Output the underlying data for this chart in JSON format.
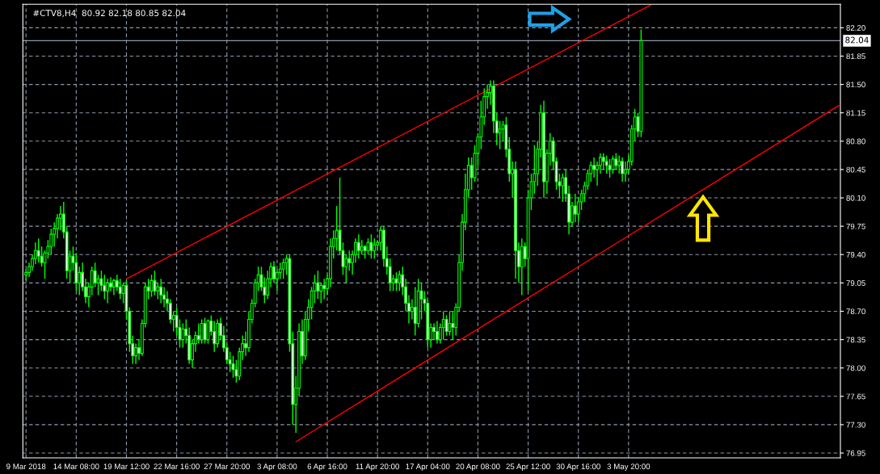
{
  "chart_data": {
    "type": "candlestick",
    "title": "#CTV8,H4  80.92 82.18 80.85 82.04",
    "series": [
      {
        "type": "candlestick",
        "color": "#00ff00",
        "ohlc": [
          [
            79.15,
            79.22,
            79.08,
            79.18
          ],
          [
            79.18,
            79.3,
            79.12,
            79.25
          ],
          [
            79.25,
            79.4,
            79.2,
            79.35
          ],
          [
            79.35,
            79.55,
            79.28,
            79.45
          ],
          [
            79.45,
            79.6,
            79.3,
            79.38
          ],
          [
            79.38,
            79.5,
            79.25,
            79.3
          ],
          [
            79.3,
            79.45,
            79.1,
            79.42
          ],
          [
            79.42,
            79.58,
            79.35,
            79.5
          ],
          [
            79.5,
            79.72,
            79.4,
            79.65
          ],
          [
            79.65,
            79.8,
            79.5,
            79.72
          ],
          [
            79.72,
            79.9,
            79.6,
            79.85
          ],
          [
            79.85,
            80.0,
            79.7,
            79.9
          ],
          [
            79.9,
            80.05,
            79.6,
            79.68
          ],
          [
            79.68,
            79.75,
            79.1,
            79.2
          ],
          [
            79.2,
            79.45,
            79.05,
            79.38
          ],
          [
            79.38,
            79.5,
            79.2,
            79.3
          ],
          [
            79.3,
            79.42,
            78.95,
            79.05
          ],
          [
            79.05,
            79.25,
            78.9,
            79.18
          ],
          [
            79.18,
            79.3,
            78.95,
            79.0
          ],
          [
            79.0,
            79.1,
            78.8,
            78.88
          ],
          [
            78.88,
            79.05,
            78.75,
            79.0
          ],
          [
            79.0,
            79.25,
            78.9,
            79.2
          ],
          [
            79.2,
            79.3,
            79.0,
            79.05
          ],
          [
            79.05,
            79.15,
            78.9,
            79.1
          ],
          [
            79.1,
            79.2,
            78.95,
            79.02
          ],
          [
            79.02,
            79.15,
            78.85,
            78.95
          ],
          [
            78.95,
            79.1,
            78.8,
            79.05
          ],
          [
            79.05,
            79.12,
            78.95,
            79.0
          ],
          [
            79.0,
            79.1,
            78.9,
            79.08
          ],
          [
            79.08,
            79.15,
            78.95,
            79.0
          ],
          [
            79.0,
            79.1,
            78.85,
            78.92
          ],
          [
            78.92,
            79.05,
            78.8,
            79.02
          ],
          [
            79.02,
            79.08,
            78.6,
            78.7
          ],
          [
            78.7,
            78.75,
            78.2,
            78.3
          ],
          [
            78.3,
            78.4,
            78.05,
            78.15
          ],
          [
            78.15,
            78.3,
            78.05,
            78.25
          ],
          [
            78.25,
            78.35,
            78.1,
            78.18
          ],
          [
            78.18,
            78.6,
            78.15,
            78.55
          ],
          [
            78.55,
            79.05,
            78.5,
            79.0
          ],
          [
            79.0,
            79.1,
            78.85,
            78.95
          ],
          [
            78.95,
            79.15,
            78.88,
            79.08
          ],
          [
            79.08,
            79.2,
            78.9,
            78.95
          ],
          [
            78.95,
            79.05,
            78.85,
            79.0
          ],
          [
            79.0,
            79.1,
            78.8,
            78.9
          ],
          [
            78.9,
            79.0,
            78.75,
            78.85
          ],
          [
            78.85,
            78.95,
            78.7,
            78.8
          ],
          [
            78.8,
            78.85,
            78.55,
            78.6
          ],
          [
            78.6,
            78.7,
            78.45,
            78.65
          ],
          [
            78.65,
            78.75,
            78.4,
            78.5
          ],
          [
            78.5,
            78.6,
            78.25,
            78.35
          ],
          [
            78.35,
            78.55,
            78.25,
            78.48
          ],
          [
            78.48,
            78.6,
            78.3,
            78.4
          ],
          [
            78.4,
            78.5,
            78.05,
            78.1
          ],
          [
            78.1,
            78.35,
            78.0,
            78.3
          ],
          [
            78.3,
            78.45,
            78.2,
            78.4
          ],
          [
            78.4,
            78.55,
            78.3,
            78.35
          ],
          [
            78.35,
            78.6,
            78.3,
            78.55
          ],
          [
            78.55,
            78.62,
            78.3,
            78.35
          ],
          [
            78.35,
            78.6,
            78.3,
            78.58
          ],
          [
            78.58,
            78.65,
            78.4,
            78.45
          ],
          [
            78.45,
            78.58,
            78.2,
            78.3
          ],
          [
            78.3,
            78.6,
            78.25,
            78.55
          ],
          [
            78.55,
            78.62,
            78.35,
            78.4
          ],
          [
            78.4,
            78.52,
            78.2,
            78.25
          ],
          [
            78.25,
            78.3,
            78.05,
            78.1
          ],
          [
            78.1,
            78.2,
            77.95,
            78.05
          ],
          [
            78.05,
            78.15,
            77.88,
            77.98
          ],
          [
            77.98,
            78.1,
            77.82,
            77.9
          ],
          [
            77.9,
            78.25,
            77.85,
            78.2
          ],
          [
            78.2,
            78.4,
            78.1,
            78.3
          ],
          [
            78.3,
            78.45,
            78.15,
            78.25
          ],
          [
            78.25,
            78.7,
            78.2,
            78.6
          ],
          [
            78.6,
            78.85,
            78.55,
            78.8
          ],
          [
            78.8,
            79.1,
            78.75,
            79.05
          ],
          [
            79.05,
            79.25,
            78.95,
            79.15
          ],
          [
            79.15,
            79.25,
            78.95,
            79.0
          ],
          [
            79.0,
            79.12,
            78.8,
            78.9
          ],
          [
            78.9,
            79.2,
            78.85,
            79.1
          ],
          [
            79.1,
            79.3,
            79.0,
            79.25
          ],
          [
            79.25,
            79.32,
            79.05,
            79.1
          ],
          [
            79.1,
            79.22,
            78.95,
            79.18
          ],
          [
            79.18,
            79.3,
            79.1,
            79.22
          ],
          [
            79.22,
            79.35,
            79.1,
            79.3
          ],
          [
            79.3,
            79.4,
            79.15,
            79.35
          ],
          [
            79.35,
            79.4,
            78.2,
            78.3
          ],
          [
            78.3,
            78.45,
            77.3,
            77.55
          ],
          [
            77.55,
            77.9,
            77.2,
            77.75
          ],
          [
            77.75,
            78.55,
            77.65,
            78.45
          ],
          [
            78.45,
            78.6,
            78.05,
            78.15
          ],
          [
            78.15,
            78.7,
            78.1,
            78.6
          ],
          [
            78.6,
            78.85,
            78.45,
            78.75
          ],
          [
            78.75,
            79.0,
            78.6,
            78.95
          ],
          [
            78.95,
            79.15,
            78.8,
            79.05
          ],
          [
            79.05,
            79.2,
            78.85,
            78.95
          ],
          [
            78.95,
            79.05,
            78.8,
            79.02
          ],
          [
            79.02,
            79.1,
            78.85,
            78.98
          ],
          [
            78.98,
            79.15,
            78.9,
            79.1
          ],
          [
            79.1,
            79.6,
            79.0,
            79.5
          ],
          [
            79.5,
            79.7,
            79.35,
            79.6
          ],
          [
            79.6,
            80.0,
            79.45,
            79.7
          ],
          [
            79.7,
            80.35,
            79.4,
            79.45
          ],
          [
            79.45,
            79.55,
            79.15,
            79.25
          ],
          [
            79.25,
            79.4,
            79.05,
            79.35
          ],
          [
            79.35,
            79.45,
            79.2,
            79.3
          ],
          [
            79.3,
            79.45,
            79.15,
            79.4
          ],
          [
            79.4,
            79.6,
            79.3,
            79.55
          ],
          [
            79.55,
            79.65,
            79.35,
            79.45
          ],
          [
            79.45,
            79.58,
            79.4,
            79.5
          ],
          [
            79.5,
            79.52,
            79.35,
            79.45
          ],
          [
            79.45,
            79.6,
            79.4,
            79.55
          ],
          [
            79.55,
            79.65,
            79.35,
            79.45
          ],
          [
            79.45,
            79.6,
            79.35,
            79.52
          ],
          [
            79.52,
            79.58,
            79.45,
            79.55
          ],
          [
            79.55,
            79.75,
            79.45,
            79.7
          ],
          [
            79.7,
            79.75,
            79.25,
            79.35
          ],
          [
            79.35,
            79.5,
            79.15,
            79.25
          ],
          [
            79.25,
            79.35,
            78.95,
            79.05
          ],
          [
            79.05,
            79.15,
            78.95,
            79.1
          ],
          [
            79.1,
            79.18,
            78.95,
            79.05
          ],
          [
            79.05,
            79.2,
            78.95,
            79.15
          ],
          [
            79.15,
            79.25,
            78.9,
            79.0
          ],
          [
            79.0,
            79.1,
            78.7,
            78.8
          ],
          [
            78.8,
            78.9,
            78.55,
            78.7
          ],
          [
            78.7,
            78.85,
            78.6,
            78.75
          ],
          [
            78.75,
            79.0,
            78.4,
            78.55
          ],
          [
            78.55,
            79.1,
            78.5,
            78.95
          ],
          [
            78.95,
            79.05,
            78.6,
            78.85
          ],
          [
            78.85,
            78.95,
            78.7,
            78.8
          ],
          [
            78.8,
            78.85,
            78.25,
            78.35
          ],
          [
            78.35,
            78.55,
            78.25,
            78.5
          ],
          [
            78.5,
            78.55,
            78.35,
            78.45
          ],
          [
            78.45,
            78.58,
            78.3,
            78.35
          ],
          [
            78.35,
            78.55,
            78.3,
            78.5
          ],
          [
            78.5,
            78.7,
            78.35,
            78.6
          ],
          [
            78.6,
            78.65,
            78.4,
            78.45
          ],
          [
            78.45,
            78.7,
            78.4,
            78.55
          ],
          [
            78.55,
            78.7,
            78.35,
            78.5
          ],
          [
            78.5,
            78.8,
            78.4,
            78.75
          ],
          [
            78.75,
            79.4,
            78.7,
            79.3
          ],
          [
            79.3,
            79.9,
            79.2,
            79.8
          ],
          [
            79.8,
            80.4,
            79.7,
            80.2
          ],
          [
            80.2,
            80.6,
            80.1,
            80.5
          ],
          [
            80.5,
            80.6,
            80.2,
            80.35
          ],
          [
            80.35,
            80.75,
            80.3,
            80.65
          ],
          [
            80.65,
            80.9,
            80.5,
            80.85
          ],
          [
            80.85,
            81.3,
            80.7,
            81.1
          ],
          [
            81.1,
            81.45,
            81.0,
            81.35
          ],
          [
            81.35,
            81.5,
            81.2,
            81.4
          ],
          [
            81.4,
            81.55,
            81.25,
            81.48
          ],
          [
            81.48,
            81.55,
            80.9,
            81.05
          ],
          [
            81.05,
            81.15,
            80.75,
            80.9
          ],
          [
            80.9,
            81.05,
            80.7,
            80.95
          ],
          [
            80.95,
            81.05,
            80.8,
            81.0
          ],
          [
            81.0,
            81.1,
            80.6,
            80.7
          ],
          [
            80.7,
            80.85,
            80.3,
            80.4
          ],
          [
            80.4,
            80.55,
            80.1,
            80.45
          ],
          [
            80.45,
            80.55,
            79.1,
            79.45
          ],
          [
            79.45,
            79.55,
            79.05,
            79.25
          ],
          [
            79.25,
            79.6,
            78.9,
            79.5
          ],
          [
            79.5,
            79.55,
            79.25,
            79.35
          ],
          [
            79.35,
            80.2,
            78.95,
            80.1
          ],
          [
            80.1,
            80.4,
            79.95,
            80.3
          ],
          [
            80.3,
            80.75,
            80.15,
            80.4
          ],
          [
            80.4,
            80.8,
            80.25,
            80.7
          ],
          [
            80.7,
            81.25,
            80.6,
            81.15
          ],
          [
            81.15,
            81.3,
            80.1,
            80.3
          ],
          [
            80.3,
            80.7,
            80.15,
            80.65
          ],
          [
            80.65,
            80.9,
            80.5,
            80.8
          ],
          [
            80.8,
            80.85,
            80.45,
            80.55
          ],
          [
            80.55,
            80.6,
            80.2,
            80.3
          ],
          [
            80.3,
            80.4,
            80.1,
            80.25
          ],
          [
            80.25,
            80.4,
            80.05,
            80.35
          ],
          [
            80.35,
            80.45,
            80.05,
            80.15
          ],
          [
            80.15,
            80.25,
            79.65,
            79.8
          ],
          [
            79.8,
            80.05,
            79.75,
            80.0
          ],
          [
            80.0,
            80.15,
            79.8,
            79.9
          ],
          [
            79.9,
            80.1,
            79.8,
            80.05
          ],
          [
            80.05,
            80.2,
            79.95,
            80.15
          ],
          [
            80.15,
            80.3,
            80.05,
            80.25
          ],
          [
            80.25,
            80.45,
            80.2,
            80.4
          ],
          [
            80.4,
            80.55,
            80.3,
            80.5
          ],
          [
            80.5,
            80.6,
            80.35,
            80.45
          ],
          [
            80.45,
            80.55,
            80.25,
            80.5
          ],
          [
            80.5,
            80.65,
            80.4,
            80.6
          ],
          [
            80.6,
            80.65,
            80.45,
            80.55
          ],
          [
            80.55,
            80.62,
            80.4,
            80.5
          ],
          [
            80.5,
            80.58,
            80.35,
            80.45
          ],
          [
            80.45,
            80.62,
            80.4,
            80.58
          ],
          [
            80.58,
            80.65,
            80.45,
            80.5
          ],
          [
            80.5,
            80.62,
            80.4,
            80.55
          ],
          [
            80.55,
            80.6,
            80.3,
            80.4
          ],
          [
            80.4,
            80.55,
            80.3,
            80.45
          ],
          [
            80.45,
            80.62,
            80.4,
            80.55
          ],
          [
            80.55,
            81.0,
            80.5,
            80.95
          ],
          [
            80.95,
            81.2,
            80.8,
            81.1
          ],
          [
            81.1,
            81.15,
            80.85,
            80.92
          ],
          [
            80.92,
            82.18,
            80.85,
            82.04
          ],
          null,
          null,
          null,
          null,
          null,
          null,
          null,
          null,
          null,
          null,
          null,
          null,
          null,
          null,
          null,
          null,
          null,
          null,
          null,
          null,
          null,
          null,
          null,
          null,
          null,
          null,
          null,
          null,
          null,
          null,
          null,
          null,
          null,
          null,
          null,
          null,
          null,
          null,
          null,
          null,
          null,
          null,
          null,
          null,
          null,
          null,
          null,
          null,
          null,
          null,
          null,
          null,
          null,
          null,
          null,
          null,
          null,
          null,
          null,
          null,
          null,
          null,
          null
        ]
      },
      {
        "type": "line",
        "color": "#ff0000",
        "values": [
          null,
          null,
          null,
          null,
          null,
          null,
          null,
          null,
          null,
          null,
          null,
          null,
          null,
          null,
          null,
          null,
          null,
          null,
          null,
          null,
          null,
          null,
          null,
          null,
          null,
          null,
          null,
          null,
          null,
          null,
          null,
          null,
          79.1,
          null,
          null,
          null,
          null,
          null,
          null,
          null,
          null,
          null,
          null,
          null,
          null,
          null,
          null,
          null,
          null,
          null,
          null,
          null,
          null,
          null,
          null,
          null,
          null,
          null,
          null,
          null,
          null,
          null,
          null,
          null,
          null,
          null,
          null,
          null,
          null,
          null,
          null,
          null,
          null,
          null,
          null,
          null,
          null,
          null,
          null,
          null,
          null,
          null,
          null,
          null,
          null,
          null,
          null,
          null,
          null,
          null,
          null,
          null,
          null,
          null,
          null,
          null,
          null,
          null,
          null,
          null,
          null,
          null,
          null,
          null,
          null,
          null,
          null,
          null,
          null,
          null,
          null,
          null,
          null,
          null,
          null,
          null,
          null,
          null,
          null,
          null,
          null,
          null,
          null,
          null,
          null,
          null,
          null,
          null,
          null,
          null,
          null,
          null,
          null,
          null,
          null,
          null,
          null,
          null,
          null,
          null,
          null,
          null,
          null,
          null,
          null,
          null,
          null,
          null,
          null,
          null,
          null,
          null,
          null,
          null,
          null,
          null,
          null,
          null,
          null,
          null,
          null,
          null,
          null,
          null,
          null,
          null,
          null,
          null,
          null,
          null,
          null,
          null,
          null,
          null,
          null,
          null,
          null,
          null,
          null,
          null,
          null,
          null,
          null,
          null,
          null,
          null,
          null,
          null,
          null,
          null,
          null,
          null,
          null,
          null,
          null,
          null,
          null,
          null,
          null,
          82.48,
          null,
          null,
          null,
          null,
          null,
          null,
          null,
          null,
          null,
          null,
          null,
          null,
          null,
          null,
          null,
          null,
          null,
          null,
          null,
          null,
          null,
          null,
          null,
          null,
          null,
          null,
          null,
          null,
          null,
          null,
          null,
          null,
          null,
          null,
          null,
          null,
          null,
          null,
          null,
          null,
          null,
          null,
          null,
          null,
          null,
          null,
          null,
          null,
          null,
          null,
          null,
          null,
          null,
          null,
          null,
          null,
          null,
          null,
          null,
          null
        ]
      },
      {
        "type": "line",
        "color": "#ff0000",
        "values": [
          null,
          null,
          null,
          null,
          null,
          null,
          null,
          null,
          null,
          null,
          null,
          null,
          null,
          null,
          null,
          null,
          null,
          null,
          null,
          null,
          null,
          null,
          null,
          null,
          null,
          null,
          null,
          null,
          null,
          null,
          null,
          null,
          null,
          null,
          null,
          null,
          null,
          null,
          null,
          null,
          null,
          null,
          null,
          null,
          null,
          null,
          null,
          null,
          null,
          null,
          null,
          null,
          null,
          null,
          null,
          null,
          null,
          null,
          null,
          null,
          null,
          null,
          null,
          null,
          null,
          null,
          null,
          null,
          null,
          null,
          null,
          null,
          null,
          null,
          null,
          null,
          null,
          null,
          null,
          null,
          null,
          null,
          null,
          null,
          null,
          null,
          77.09,
          null,
          null,
          null,
          null,
          null,
          null,
          null,
          null,
          null,
          null,
          null,
          null,
          null,
          null,
          null,
          null,
          null,
          null,
          null,
          null,
          null,
          null,
          null,
          null,
          null,
          null,
          null,
          null,
          null,
          null,
          null,
          null,
          null,
          null,
          null,
          null,
          null,
          null,
          null,
          null,
          null,
          null,
          null,
          null,
          null,
          null,
          null,
          null,
          null,
          null,
          null,
          null,
          null,
          null,
          null,
          null,
          null,
          null,
          null,
          null,
          null,
          null,
          null,
          null,
          null,
          null,
          null,
          null,
          null,
          null,
          null,
          null,
          null,
          null,
          null,
          null,
          null,
          null,
          null,
          null,
          null,
          null,
          null,
          null,
          null,
          null,
          null,
          null,
          null,
          null,
          null,
          null,
          null,
          null,
          null,
          null,
          null,
          null,
          null,
          null,
          null,
          null,
          null,
          null,
          null,
          null,
          null,
          null,
          null,
          null,
          null,
          null,
          null,
          null,
          null,
          null,
          null,
          null,
          null,
          null,
          null,
          null,
          null,
          null,
          null,
          null,
          null,
          null,
          null,
          null,
          null,
          null,
          null,
          null,
          null,
          null,
          null,
          null,
          null,
          null,
          null,
          null,
          null,
          null,
          null,
          null,
          null,
          null,
          null,
          null,
          null,
          null,
          null,
          null,
          null,
          null,
          null,
          null,
          null,
          null,
          null,
          null,
          null,
          null,
          null,
          null,
          null,
          null,
          null,
          null,
          null,
          null,
          81.24
        ]
      }
    ],
    "categories": [
      "9 Mar 2018",
      null,
      null,
      null,
      null,
      null,
      null,
      null,
      null,
      null,
      null,
      null,
      null,
      null,
      null,
      null,
      "14 Mar 08:00",
      null,
      null,
      null,
      null,
      null,
      null,
      null,
      null,
      null,
      null,
      null,
      null,
      null,
      null,
      null,
      "19 Mar 12:00",
      null,
      null,
      null,
      null,
      null,
      null,
      null,
      null,
      null,
      null,
      null,
      null,
      null,
      null,
      null,
      "22 Mar 16:00",
      null,
      null,
      null,
      null,
      null,
      null,
      null,
      null,
      null,
      null,
      null,
      null,
      null,
      null,
      null,
      "27 Mar 20:00",
      null,
      null,
      null,
      null,
      null,
      null,
      null,
      null,
      null,
      null,
      null,
      null,
      null,
      null,
      null,
      "3 Apr 08:00",
      null,
      null,
      null,
      null,
      null,
      null,
      null,
      null,
      null,
      null,
      null,
      null,
      null,
      null,
      null,
      "6 Apr 16:00",
      null,
      null,
      null,
      null,
      null,
      null,
      null,
      null,
      null,
      null,
      null,
      null,
      null,
      null,
      null,
      "11 Apr 20:00",
      null,
      null,
      null,
      null,
      null,
      null,
      null,
      null,
      null,
      null,
      null,
      null,
      null,
      null,
      null,
      "17 Apr 04:00",
      null,
      null,
      null,
      null,
      null,
      null,
      null,
      null,
      null,
      null,
      null,
      null,
      null,
      null,
      null,
      "20 Apr 08:00",
      null,
      null,
      null,
      null,
      null,
      null,
      null,
      null,
      null,
      null,
      null,
      null,
      null,
      null,
      null,
      "25 Apr 12:00",
      null,
      null,
      null,
      null,
      null,
      null,
      null,
      null,
      null,
      null,
      null,
      null,
      null,
      null,
      null,
      "30 Apr 16:00",
      null,
      null,
      null,
      null,
      null,
      null,
      null,
      null,
      null,
      null,
      null,
      null,
      null,
      null,
      null,
      "3 May 20:00",
      null,
      null,
      null,
      null,
      null,
      null,
      null,
      null,
      null,
      null,
      null,
      null,
      null,
      null,
      null,
      null,
      null,
      null,
      null,
      null,
      null,
      null,
      null,
      null,
      null,
      null,
      null,
      null,
      null,
      null,
      null,
      null,
      null,
      null,
      null,
      null,
      null,
      null,
      null,
      null,
      null,
      null,
      null,
      null,
      null,
      null,
      null,
      null,
      null,
      null,
      null,
      null,
      null,
      null,
      null,
      null,
      null,
      null,
      null,
      null,
      null,
      null,
      null,
      null,
      null,
      null,
      null
    ],
    "ylim": [
      76.89,
      82.49
    ],
    "yticks": [
      76.95,
      {
        "value": 77.3,
        "label": "77.30"
      },
      77.65,
      {
        "value": 78.0,
        "label": "78.00"
      },
      78.35,
      {
        "value": 78.7,
        "label": "78.70"
      },
      79.05,
      {
        "value": 79.4,
        "label": "79.40"
      },
      79.75,
      {
        "value": 80.1,
        "label": "80.10"
      },
      80.45,
      {
        "value": 80.8,
        "label": "80.80"
      },
      81.15,
      {
        "value": 81.5,
        "label": "81.50"
      },
      81.85,
      {
        "value": 82.2,
        "label": "82.20"
      }
    ],
    "ref_lines": [
      {
        "axis": "y",
        "value": 82.04,
        "label": "82.04",
        "color": "#8c98a8"
      }
    ],
    "grid": true
  }
}
